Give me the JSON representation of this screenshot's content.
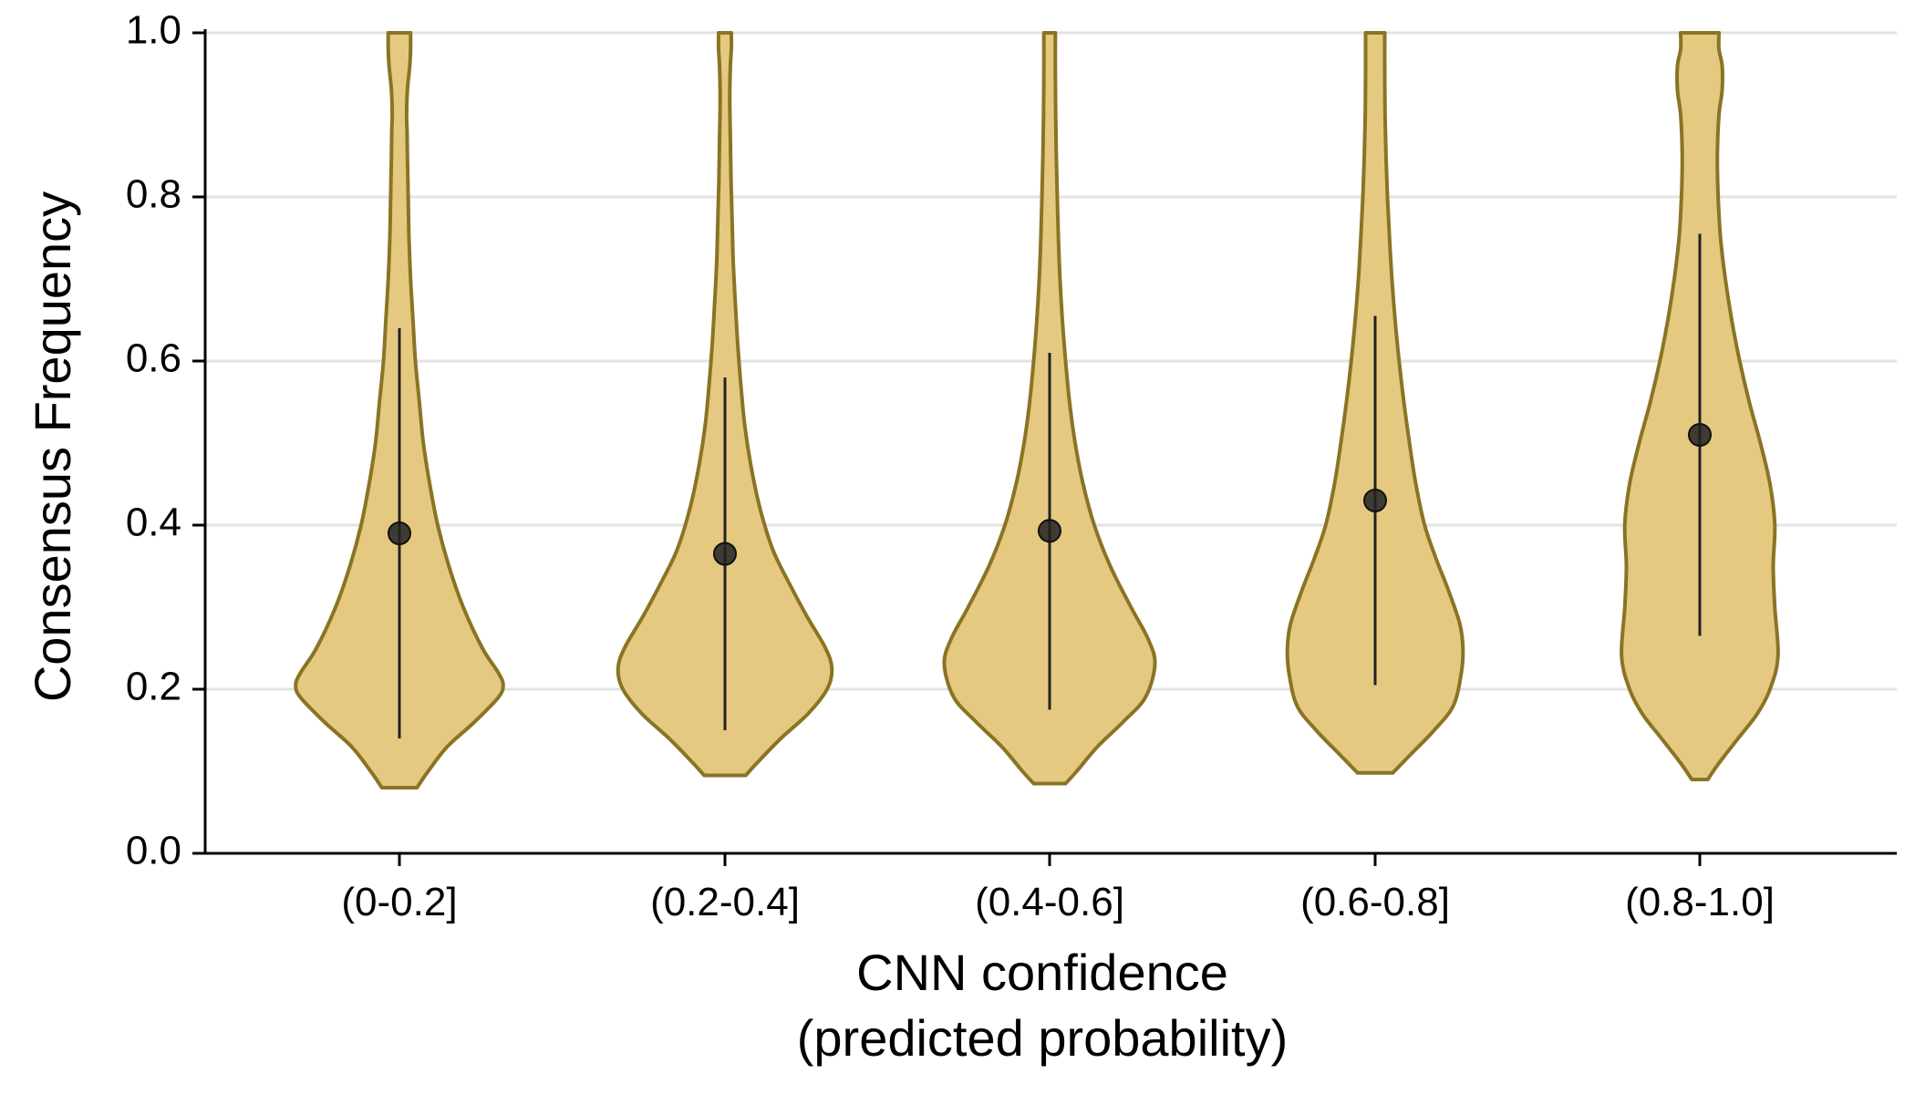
{
  "chart_data": {
    "type": "violin",
    "xlabel": [
      "CNN confidence",
      "(predicted probability)"
    ],
    "ylabel": "Consensus Frequency",
    "ylim": [
      0,
      1
    ],
    "yticks": [
      "0.0",
      "0.2",
      "0.4",
      "0.6",
      "0.8",
      "1.0"
    ],
    "categories": [
      "(0-0.2]",
      "(0.2-0.4]",
      "(0.4-0.6]",
      "(0.6-0.8]",
      "(0.8-1.0]"
    ],
    "grid": true,
    "colors": {
      "fill": "#E5C981",
      "stroke": "#8A7424",
      "marker": "#222222"
    },
    "summary": [
      {
        "category": "(0-0.2]",
        "mean": 0.39,
        "low": 0.14,
        "high": 0.64
      },
      {
        "category": "(0.2-0.4]",
        "mean": 0.365,
        "low": 0.15,
        "high": 0.58
      },
      {
        "category": "(0.4-0.6]",
        "mean": 0.393,
        "low": 0.175,
        "high": 0.61
      },
      {
        "category": "(0.6-0.8]",
        "mean": 0.43,
        "low": 0.205,
        "high": 0.655
      },
      {
        "category": "(0.8-1.0]",
        "mean": 0.51,
        "low": 0.265,
        "high": 0.755
      }
    ],
    "violins": [
      {
        "category": "(0-0.2]",
        "min": 0.08,
        "max": 1.0,
        "profile": [
          [
            0.08,
            0.11
          ],
          [
            0.1,
            0.18
          ],
          [
            0.13,
            0.3
          ],
          [
            0.16,
            0.47
          ],
          [
            0.19,
            0.62
          ],
          [
            0.205,
            0.65
          ],
          [
            0.22,
            0.62
          ],
          [
            0.25,
            0.52
          ],
          [
            0.3,
            0.4
          ],
          [
            0.35,
            0.31
          ],
          [
            0.4,
            0.24
          ],
          [
            0.45,
            0.19
          ],
          [
            0.5,
            0.15
          ],
          [
            0.55,
            0.125
          ],
          [
            0.6,
            0.1
          ],
          [
            0.65,
            0.085
          ],
          [
            0.7,
            0.07
          ],
          [
            0.75,
            0.06
          ],
          [
            0.8,
            0.055
          ],
          [
            0.85,
            0.05
          ],
          [
            0.88,
            0.048
          ],
          [
            0.9,
            0.045
          ],
          [
            0.93,
            0.05
          ],
          [
            0.96,
            0.065
          ],
          [
            0.98,
            0.07
          ],
          [
            1.0,
            0.07
          ]
        ]
      },
      {
        "category": "(0.2-0.4]",
        "min": 0.095,
        "max": 1.0,
        "profile": [
          [
            0.095,
            0.13
          ],
          [
            0.11,
            0.2
          ],
          [
            0.14,
            0.35
          ],
          [
            0.17,
            0.52
          ],
          [
            0.2,
            0.64
          ],
          [
            0.225,
            0.67
          ],
          [
            0.25,
            0.63
          ],
          [
            0.29,
            0.51
          ],
          [
            0.33,
            0.4
          ],
          [
            0.37,
            0.3
          ],
          [
            0.42,
            0.22
          ],
          [
            0.47,
            0.165
          ],
          [
            0.52,
            0.125
          ],
          [
            0.57,
            0.1
          ],
          [
            0.62,
            0.08
          ],
          [
            0.67,
            0.065
          ],
          [
            0.72,
            0.052
          ],
          [
            0.77,
            0.045
          ],
          [
            0.82,
            0.038
          ],
          [
            0.87,
            0.034
          ],
          [
            0.92,
            0.03
          ],
          [
            0.96,
            0.034
          ],
          [
            0.98,
            0.04
          ],
          [
            1.0,
            0.04
          ]
        ]
      },
      {
        "category": "(0.4-0.6]",
        "min": 0.085,
        "max": 1.0,
        "profile": [
          [
            0.085,
            0.1
          ],
          [
            0.1,
            0.17
          ],
          [
            0.13,
            0.3
          ],
          [
            0.16,
            0.46
          ],
          [
            0.19,
            0.6
          ],
          [
            0.23,
            0.66
          ],
          [
            0.26,
            0.62
          ],
          [
            0.3,
            0.51
          ],
          [
            0.35,
            0.38
          ],
          [
            0.4,
            0.28
          ],
          [
            0.45,
            0.21
          ],
          [
            0.5,
            0.16
          ],
          [
            0.55,
            0.125
          ],
          [
            0.6,
            0.1
          ],
          [
            0.65,
            0.08
          ],
          [
            0.7,
            0.065
          ],
          [
            0.75,
            0.055
          ],
          [
            0.8,
            0.048
          ],
          [
            0.85,
            0.042
          ],
          [
            0.9,
            0.038
          ],
          [
            0.95,
            0.036
          ],
          [
            1.0,
            0.036
          ]
        ]
      },
      {
        "category": "(0.6-0.8]",
        "min": 0.098,
        "max": 1.0,
        "profile": [
          [
            0.098,
            0.11
          ],
          [
            0.12,
            0.22
          ],
          [
            0.15,
            0.37
          ],
          [
            0.18,
            0.49
          ],
          [
            0.22,
            0.54
          ],
          [
            0.25,
            0.55
          ],
          [
            0.28,
            0.53
          ],
          [
            0.32,
            0.46
          ],
          [
            0.36,
            0.38
          ],
          [
            0.4,
            0.31
          ],
          [
            0.45,
            0.255
          ],
          [
            0.5,
            0.215
          ],
          [
            0.55,
            0.18
          ],
          [
            0.6,
            0.15
          ],
          [
            0.65,
            0.125
          ],
          [
            0.7,
            0.105
          ],
          [
            0.75,
            0.09
          ],
          [
            0.8,
            0.077
          ],
          [
            0.85,
            0.068
          ],
          [
            0.9,
            0.062
          ],
          [
            0.95,
            0.06
          ],
          [
            1.0,
            0.06
          ]
        ]
      },
      {
        "category": "(0.8-1.0]",
        "min": 0.09,
        "max": 1.0,
        "profile": [
          [
            0.09,
            0.05
          ],
          [
            0.11,
            0.12
          ],
          [
            0.14,
            0.24
          ],
          [
            0.17,
            0.36
          ],
          [
            0.2,
            0.44
          ],
          [
            0.24,
            0.49
          ],
          [
            0.3,
            0.47
          ],
          [
            0.35,
            0.46
          ],
          [
            0.4,
            0.47
          ],
          [
            0.45,
            0.44
          ],
          [
            0.5,
            0.38
          ],
          [
            0.55,
            0.31
          ],
          [
            0.6,
            0.25
          ],
          [
            0.65,
            0.2
          ],
          [
            0.7,
            0.16
          ],
          [
            0.75,
            0.13
          ],
          [
            0.8,
            0.115
          ],
          [
            0.85,
            0.11
          ],
          [
            0.9,
            0.12
          ],
          [
            0.93,
            0.14
          ],
          [
            0.96,
            0.14
          ],
          [
            0.98,
            0.12
          ],
          [
            1.0,
            0.12
          ]
        ]
      }
    ]
  }
}
